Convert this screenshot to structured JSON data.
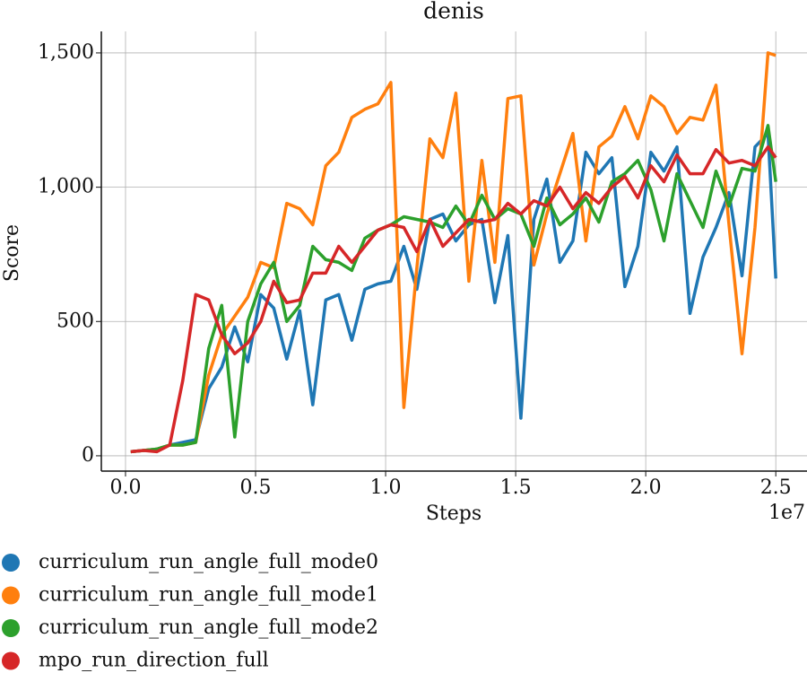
{
  "chart_data": {
    "type": "line",
    "title": "denis",
    "x_label": "Steps",
    "y_label": "Score",
    "x_offset_label": "1e7",
    "x": [
      0.02,
      0.07,
      0.12,
      0.17,
      0.22,
      0.27,
      0.32,
      0.37,
      0.42,
      0.47,
      0.52,
      0.57,
      0.62,
      0.67,
      0.72,
      0.77,
      0.82,
      0.87,
      0.92,
      0.97,
      1.02,
      1.07,
      1.12,
      1.17,
      1.22,
      1.27,
      1.32,
      1.37,
      1.42,
      1.47,
      1.52,
      1.57,
      1.62,
      1.67,
      1.72,
      1.77,
      1.82,
      1.87,
      1.92,
      1.97,
      2.02,
      2.07,
      2.12,
      2.17,
      2.22,
      2.27,
      2.32,
      2.37,
      2.42,
      2.47,
      2.5
    ],
    "series": [
      {
        "name": "curriculum_run_angle_full_mode0",
        "color": "#1f77b4",
        "values": [
          15,
          20,
          25,
          40,
          50,
          60,
          250,
          330,
          480,
          350,
          600,
          550,
          360,
          540,
          190,
          580,
          600,
          430,
          620,
          640,
          650,
          780,
          620,
          880,
          900,
          800,
          860,
          880,
          570,
          820,
          140,
          880,
          1030,
          720,
          800,
          1130,
          1050,
          1110,
          630,
          780,
          1130,
          1060,
          1150,
          530,
          740,
          850,
          980,
          670,
          1150,
          1200,
          660
        ]
      },
      {
        "name": "curriculum_run_angle_full_mode1",
        "color": "#ff7f0e",
        "values": [
          15,
          20,
          25,
          40,
          40,
          50,
          300,
          450,
          520,
          590,
          720,
          700,
          940,
          920,
          860,
          1080,
          1130,
          1260,
          1290,
          1310,
          1390,
          180,
          700,
          1180,
          1110,
          1350,
          650,
          1100,
          720,
          1330,
          1340,
          710,
          900,
          1050,
          1200,
          800,
          1150,
          1190,
          1300,
          1180,
          1340,
          1300,
          1200,
          1260,
          1250,
          1380,
          860,
          380,
          850,
          1500,
          1490
        ]
      },
      {
        "name": "curriculum_run_angle_full_mode2",
        "color": "#2ca02c",
        "values": [
          15,
          20,
          25,
          40,
          40,
          50,
          400,
          560,
          70,
          500,
          640,
          720,
          500,
          560,
          780,
          730,
          720,
          690,
          810,
          840,
          860,
          890,
          880,
          870,
          850,
          930,
          860,
          970,
          880,
          920,
          900,
          780,
          960,
          860,
          900,
          960,
          870,
          1020,
          1050,
          1100,
          990,
          800,
          1050,
          950,
          850,
          1060,
          930,
          1070,
          1060,
          1230,
          1020
        ]
      },
      {
        "name": "mpo_run_direction_full",
        "color": "#d62728",
        "values": [
          15,
          20,
          15,
          40,
          280,
          600,
          580,
          450,
          380,
          420,
          500,
          650,
          570,
          580,
          680,
          680,
          780,
          720,
          780,
          840,
          860,
          850,
          760,
          880,
          780,
          830,
          880,
          870,
          880,
          940,
          900,
          950,
          930,
          1000,
          920,
          980,
          940,
          1000,
          1040,
          960,
          1080,
          1020,
          1120,
          1050,
          1050,
          1140,
          1090,
          1100,
          1080,
          1150,
          1110
        ]
      }
    ],
    "xlim": [
      -0.093,
      2.62
    ],
    "ylim": [
      -57,
      1580
    ],
    "xticks": [
      {
        "value": 0,
        "label": "0.0"
      },
      0.5,
      {
        "value": 1,
        "label": "1.0"
      },
      1.5,
      {
        "value": 2,
        "label": "2.0"
      },
      2.5
    ],
    "yticks": [
      0,
      500,
      {
        "value": 1000,
        "label": "1,000"
      },
      {
        "value": 1500,
        "label": "1,500"
      }
    ],
    "grid": true
  }
}
